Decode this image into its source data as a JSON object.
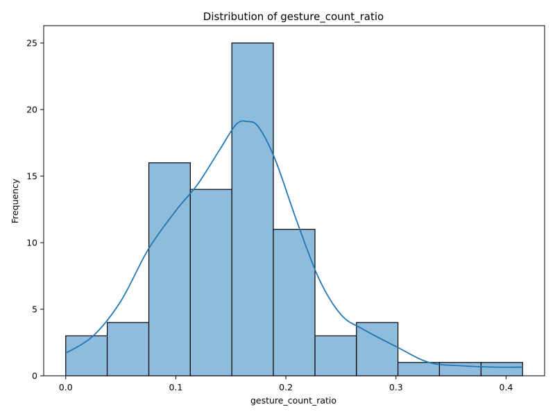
{
  "chart_data": {
    "type": "bar",
    "title": "Distribution of gesture_count_ratio",
    "xlabel": "gesture_count_ratio",
    "ylabel": "Frequency",
    "xlim": [
      -0.02,
      0.435
    ],
    "ylim": [
      0,
      26.3
    ],
    "x_ticks": [
      {
        "value": 0.0,
        "label": "0.0"
      },
      {
        "value": 0.1,
        "label": "0.1"
      },
      {
        "value": 0.2,
        "label": "0.2"
      },
      {
        "value": 0.3,
        "label": "0.3"
      },
      {
        "value": 0.4,
        "label": "0.4"
      }
    ],
    "y_ticks": [
      {
        "value": 0,
        "label": "0"
      },
      {
        "value": 5,
        "label": "5"
      },
      {
        "value": 10,
        "label": "10"
      },
      {
        "value": 15,
        "label": "15"
      },
      {
        "value": 20,
        "label": "20"
      },
      {
        "value": 25,
        "label": "25"
      }
    ],
    "bins": [
      {
        "x0": 0.0,
        "x1": 0.0377,
        "count": 3
      },
      {
        "x0": 0.0377,
        "x1": 0.0755,
        "count": 4
      },
      {
        "x0": 0.0755,
        "x1": 0.1132,
        "count": 16
      },
      {
        "x0": 0.1132,
        "x1": 0.1509,
        "count": 14
      },
      {
        "x0": 0.1509,
        "x1": 0.1886,
        "count": 25
      },
      {
        "x0": 0.1886,
        "x1": 0.2264,
        "count": 11
      },
      {
        "x0": 0.2264,
        "x1": 0.2641,
        "count": 3
      },
      {
        "x0": 0.2641,
        "x1": 0.3018,
        "count": 4
      },
      {
        "x0": 0.3018,
        "x1": 0.3395,
        "count": 1
      },
      {
        "x0": 0.3395,
        "x1": 0.3773,
        "count": 1
      },
      {
        "x0": 0.3773,
        "x1": 0.415,
        "count": 1
      }
    ],
    "kde": {
      "x": [
        0.0,
        0.025,
        0.05,
        0.075,
        0.1,
        0.12,
        0.14,
        0.155,
        0.165,
        0.175,
        0.19,
        0.21,
        0.23,
        0.25,
        0.27,
        0.3,
        0.33,
        0.36,
        0.39,
        0.415
      ],
      "y": [
        1.7,
        3.0,
        5.6,
        9.5,
        12.4,
        14.4,
        17.0,
        18.9,
        19.1,
        18.7,
        16.3,
        11.6,
        7.3,
        4.6,
        3.5,
        2.2,
        1.0,
        0.75,
        0.65,
        0.65
      ]
    },
    "colors": {
      "bar_fill": "#8fbbdc",
      "bar_edge": "#000000",
      "kde_line": "#1f77b4"
    },
    "grid": false,
    "legend": "none"
  }
}
